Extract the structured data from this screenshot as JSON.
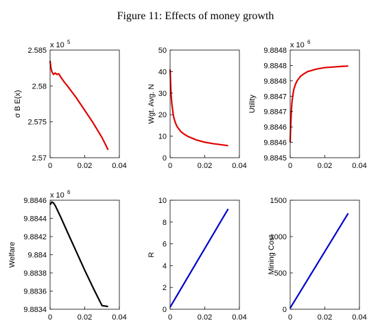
{
  "title": "Figure 11: Effects of money growth",
  "chart_data": [
    {
      "type": "line",
      "ylabel": "σ B E(x)",
      "y_exponent_label": "x 10",
      "y_exponent": 5,
      "color": "#e00000",
      "x": [
        0,
        0.0005,
        0.001,
        0.002,
        0.003,
        0.004,
        0.005,
        0.006,
        0.008,
        0.01,
        0.015,
        0.02,
        0.025,
        0.03,
        0.0335
      ],
      "values": [
        2.5835,
        2.5825,
        2.582,
        2.5816,
        2.5818,
        2.5816,
        2.5817,
        2.5813,
        2.5806,
        2.58,
        2.5784,
        2.5766,
        2.5748,
        2.5728,
        2.5711
      ],
      "xlim": [
        0,
        0.04
      ],
      "xticks": [
        0,
        0.02,
        0.04
      ],
      "ylim": [
        2.57,
        2.585
      ],
      "yticks": [
        2.57,
        2.575,
        2.58,
        2.585
      ]
    },
    {
      "type": "line",
      "ylabel": "Wgt. Avg. N",
      "color": "#e00000",
      "x": [
        0,
        0.0005,
        0.001,
        0.002,
        0.003,
        0.004,
        0.006,
        0.008,
        0.01,
        0.015,
        0.02,
        0.025,
        0.03,
        0.0335
      ],
      "values": [
        41,
        30,
        25,
        19,
        16.3,
        14.5,
        12.3,
        11,
        10,
        8.3,
        7.2,
        6.5,
        6,
        5.6
      ],
      "xlim": [
        0,
        0.04
      ],
      "xticks": [
        0,
        0.02,
        0.04
      ],
      "ylim": [
        0,
        50
      ],
      "yticks": [
        0,
        10,
        20,
        30,
        40,
        50
      ]
    },
    {
      "type": "line",
      "ylabel": "Utility",
      "y_exponent_label": "x 10",
      "y_exponent": 6,
      "color": "#e00000",
      "x": [
        0,
        0.0003,
        0.0006,
        0.001,
        0.002,
        0.003,
        0.004,
        0.006,
        0.008,
        0.01,
        0.015,
        0.02,
        0.025,
        0.03,
        0.0335
      ],
      "values": [
        9.88455,
        9.8846,
        9.88464,
        9.88468,
        9.88472,
        9.884738,
        9.88475,
        9.884765,
        9.884773,
        9.88478,
        9.884788,
        9.884793,
        9.884795,
        9.884797,
        9.884798
      ],
      "xlim": [
        0,
        0.04
      ],
      "xticks": [
        0,
        0.02,
        0.04
      ],
      "ylim": [
        9.8845,
        9.88485
      ],
      "yticks": [
        {
          "value": 9.8845,
          "label": "9.8845"
        },
        {
          "value": 9.88455,
          "label": "9.8846"
        },
        {
          "value": 9.8846,
          "label": "9.8846"
        },
        {
          "value": 9.88465,
          "label": "9.8847"
        },
        {
          "value": 9.8847,
          "label": "9.8847"
        },
        {
          "value": 9.88475,
          "label": "9.8848"
        },
        {
          "value": 9.8848,
          "label": "9.8848"
        },
        {
          "value": 9.88485,
          "label": "9.8848"
        }
      ]
    },
    {
      "type": "line",
      "ylabel": "Welfare",
      "y_exponent_label": "x 10",
      "y_exponent": 6,
      "color": "#000000",
      "x": [
        0,
        0.001,
        0.002,
        0.003,
        0.004,
        0.006,
        0.01,
        0.015,
        0.02,
        0.025,
        0.03,
        0.0335
      ],
      "values": [
        9.88455,
        9.88458,
        9.88457,
        9.88454,
        9.8845,
        9.88442,
        9.88425,
        9.88404,
        9.88383,
        9.88363,
        9.88344,
        9.88343
      ],
      "xlim": [
        0,
        0.04
      ],
      "xticks": [
        0,
        0.02,
        0.04
      ],
      "ylim": [
        9.8834,
        9.8846
      ],
      "yticks": [
        9.8834,
        9.8836,
        9.8838,
        9.884,
        9.8842,
        9.8844,
        9.8846
      ]
    },
    {
      "type": "line",
      "ylabel": "R",
      "color": "#0000cc",
      "x": [
        0,
        0.0335
      ],
      "values": [
        0.2,
        9.2
      ],
      "xlim": [
        0,
        0.04
      ],
      "xticks": [
        0,
        0.02,
        0.04
      ],
      "ylim": [
        0,
        10
      ],
      "yticks": [
        0,
        2,
        4,
        6,
        8,
        10
      ]
    },
    {
      "type": "line",
      "ylabel": "Mining Cost",
      "color": "#0000cc",
      "x": [
        0,
        0.0335
      ],
      "values": [
        15,
        1320
      ],
      "xlim": [
        0,
        0.04
      ],
      "xticks": [
        0,
        0.02,
        0.04
      ],
      "ylim": [
        0,
        1500
      ],
      "yticks": [
        0,
        500,
        1000,
        1500
      ]
    }
  ]
}
